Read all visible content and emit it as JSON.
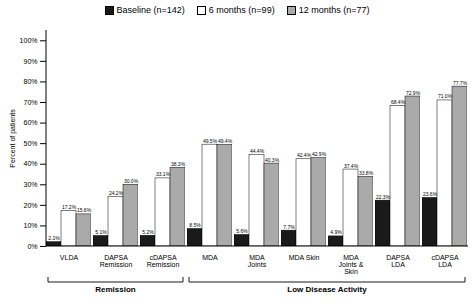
{
  "chart_data": {
    "type": "bar",
    "categories": [
      "VLDA",
      "DAPSA\nRemission",
      "cDAPSA\nRemission",
      "MDA",
      "MDA\nJoints",
      "MDA Skin",
      "MDA\nJoints &\nSkin",
      "DAPSA\nLDA",
      "cDAPSA\nLDA"
    ],
    "series": [
      {
        "name": "Baseline (n=142)",
        "color": "#1a1a1a",
        "values": [
          2.1,
          5.1,
          5.2,
          8.5,
          5.6,
          7.7,
          4.9,
          22.3,
          23.6
        ],
        "value_labels": [
          "2.1%",
          "5.1%",
          "5.2%",
          "8.5%",
          "5.6%",
          "7.7%",
          "4.9%",
          "22.3%",
          "23.6%"
        ]
      },
      {
        "name": "6 months (n=99)",
        "color": "#ffffff",
        "values": [
          17.2,
          24.2,
          33.1,
          49.5,
          44.4,
          42.4,
          37.4,
          68.4,
          71.0
        ],
        "value_labels": [
          "17.2%",
          "24.2%",
          "33.1%",
          "49.5%",
          "44.4%",
          "42.4%",
          "37.4%",
          "68.4%",
          "71.0%"
        ]
      },
      {
        "name": "12 months (n=77)",
        "color": "#aaaaaa",
        "values": [
          15.6,
          30.0,
          38.3,
          49.4,
          40.3,
          42.9,
          33.8,
          72.9,
          77.7
        ],
        "value_labels": [
          "15.6%",
          "30.0%",
          "38.3%",
          "49.4%",
          "40.3%",
          "42.9%",
          "33.8%",
          "72.9%",
          "77.7%"
        ]
      }
    ],
    "ylabel": "Percent of patients",
    "ylim": [
      0,
      105
    ],
    "yticks": [
      {
        "value": 0,
        "label": "0%"
      },
      {
        "value": 10,
        "label": "10%"
      },
      {
        "value": 20,
        "label": "20%"
      },
      {
        "value": 30,
        "label": "30%"
      },
      {
        "value": 40,
        "label": "40%"
      },
      {
        "value": 50,
        "label": "50%"
      },
      {
        "value": 60,
        "label": "60%"
      },
      {
        "value": 70,
        "label": "70%"
      },
      {
        "value": 80,
        "label": "80%"
      },
      {
        "value": 90,
        "label": "90%"
      },
      {
        "value": 100,
        "label": "100%"
      }
    ],
    "data_labels": true,
    "grid": false,
    "legend": "upper center",
    "annotations": [
      {
        "text": "Remission",
        "from": "VLDA",
        "to": "cDAPSA\nRemission"
      },
      {
        "text": "Low Disease Activity",
        "from": "MDA",
        "to": "cDAPSA\nLDA"
      }
    ]
  }
}
